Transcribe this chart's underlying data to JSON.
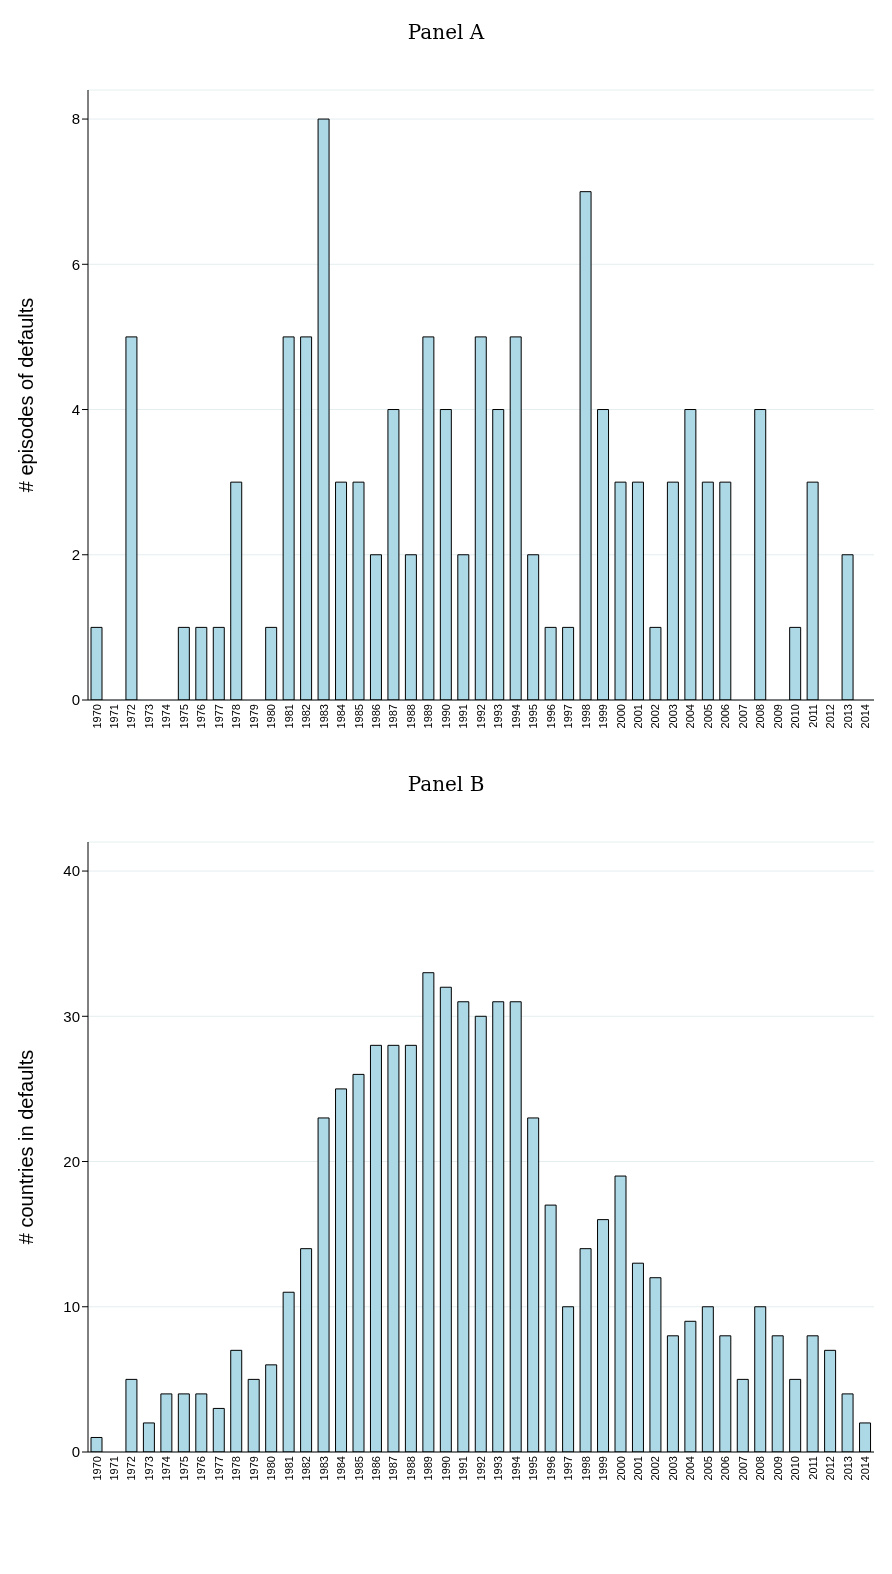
{
  "chart_data": [
    {
      "type": "bar",
      "title": "Panel A",
      "ylabel": "# episodes of defaults",
      "categories": [
        "1970",
        "1971",
        "1972",
        "1973",
        "1974",
        "1975",
        "1976",
        "1977",
        "1978",
        "1979",
        "1980",
        "1981",
        "1982",
        "1983",
        "1984",
        "1985",
        "1986",
        "1987",
        "1988",
        "1989",
        "1990",
        "1991",
        "1992",
        "1993",
        "1994",
        "1995",
        "1996",
        "1997",
        "1998",
        "1999",
        "2000",
        "2001",
        "2002",
        "2003",
        "2004",
        "2005",
        "2006",
        "2007",
        "2008",
        "2009",
        "2010",
        "2011",
        "2012",
        "2013",
        "2014"
      ],
      "values": [
        1,
        0,
        5,
        0,
        0,
        1,
        1,
        1,
        3,
        0,
        1,
        5,
        5,
        8,
        3,
        3,
        2,
        4,
        2,
        5,
        4,
        2,
        5,
        4,
        5,
        2,
        1,
        1,
        7,
        4,
        3,
        3,
        1,
        3,
        4,
        3,
        3,
        0,
        4,
        0,
        1,
        3,
        0,
        2,
        0
      ],
      "color": "#add8e6",
      "ylim": [
        0,
        8.4
      ],
      "yticks": [
        0,
        2,
        4,
        6,
        8
      ],
      "grid": "y"
    },
    {
      "type": "bar",
      "title": "Panel B",
      "ylabel": "# countries in defaults",
      "categories": [
        "1970",
        "1971",
        "1972",
        "1973",
        "1974",
        "1975",
        "1976",
        "1977",
        "1978",
        "1979",
        "1980",
        "1981",
        "1982",
        "1983",
        "1984",
        "1985",
        "1986",
        "1987",
        "1988",
        "1989",
        "1990",
        "1991",
        "1992",
        "1993",
        "1994",
        "1995",
        "1996",
        "1997",
        "1998",
        "1999",
        "2000",
        "2001",
        "2002",
        "2003",
        "2004",
        "2005",
        "2006",
        "2007",
        "2008",
        "2009",
        "2010",
        "2011",
        "2012",
        "2013",
        "2014"
      ],
      "values": [
        1,
        0,
        5,
        2,
        4,
        4,
        4,
        3,
        7,
        5,
        6,
        11,
        14,
        23,
        25,
        26,
        28,
        28,
        28,
        33,
        32,
        31,
        30,
        31,
        31,
        23,
        17,
        10,
        14,
        16,
        19,
        13,
        12,
        8,
        9,
        10,
        8,
        5,
        10,
        8,
        5,
        8,
        7,
        4,
        2
      ],
      "color": "#add8e6",
      "ylim": [
        0,
        42
      ],
      "yticks": [
        0,
        10,
        20,
        30,
        40
      ],
      "grid": "y"
    }
  ]
}
